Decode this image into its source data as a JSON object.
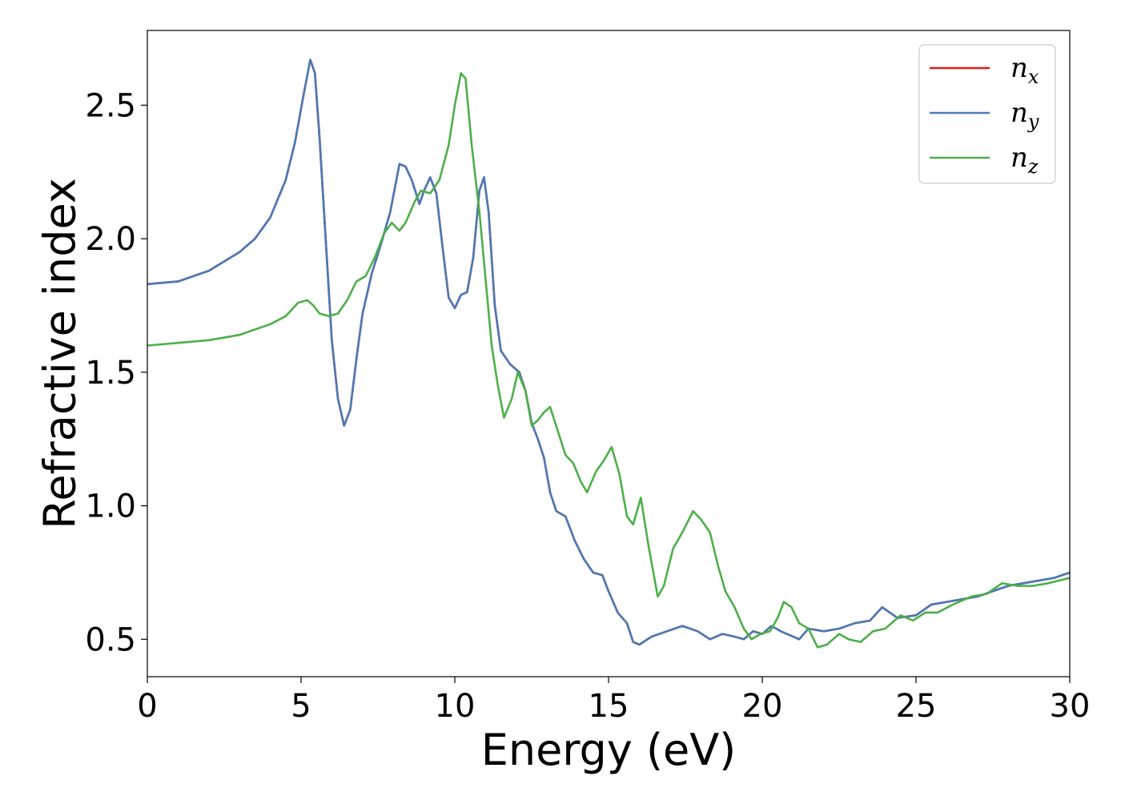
{
  "chart_data": {
    "type": "line",
    "title": "",
    "xlabel": "Energy (eV)",
    "ylabel": "Refractive index",
    "xlim": [
      0,
      30
    ],
    "ylim": [
      0.36,
      2.78
    ],
    "xticks": [
      0,
      5,
      10,
      15,
      20,
      25,
      30
    ],
    "yticks": [
      0.5,
      1.0,
      1.5,
      2.0,
      2.5
    ],
    "xtick_labels": [
      "0",
      "5",
      "10",
      "15",
      "20",
      "25",
      "30"
    ],
    "ytick_labels": [
      "0.5",
      "1.0",
      "1.5",
      "2.0",
      "2.5"
    ],
    "grid": false,
    "legend_position": "top-right",
    "series": [
      {
        "name": "n_x",
        "legend_main": "n",
        "legend_sub": "x",
        "color": "#e41a1c",
        "points": [
          [
            0,
            1.83
          ],
          [
            1,
            1.84
          ],
          [
            2,
            1.88
          ],
          [
            3,
            1.95
          ],
          [
            3.5,
            2.0
          ],
          [
            4,
            2.08
          ],
          [
            4.5,
            2.22
          ],
          [
            4.8,
            2.36
          ],
          [
            5.1,
            2.55
          ],
          [
            5.3,
            2.67
          ],
          [
            5.45,
            2.62
          ],
          [
            5.6,
            2.38
          ],
          [
            5.8,
            2.0
          ],
          [
            6.0,
            1.62
          ],
          [
            6.2,
            1.4
          ],
          [
            6.4,
            1.3
          ],
          [
            6.6,
            1.36
          ],
          [
            6.8,
            1.55
          ],
          [
            7.0,
            1.72
          ],
          [
            7.3,
            1.87
          ],
          [
            7.6,
            1.98
          ],
          [
            7.9,
            2.1
          ],
          [
            8.2,
            2.28
          ],
          [
            8.4,
            2.27
          ],
          [
            8.6,
            2.22
          ],
          [
            8.85,
            2.13
          ],
          [
            9.0,
            2.18
          ],
          [
            9.2,
            2.23
          ],
          [
            9.4,
            2.17
          ],
          [
            9.6,
            1.97
          ],
          [
            9.8,
            1.78
          ],
          [
            10.0,
            1.74
          ],
          [
            10.2,
            1.79
          ],
          [
            10.4,
            1.8
          ],
          [
            10.6,
            1.93
          ],
          [
            10.8,
            2.18
          ],
          [
            10.95,
            2.23
          ],
          [
            11.1,
            2.1
          ],
          [
            11.3,
            1.75
          ],
          [
            11.5,
            1.58
          ],
          [
            11.8,
            1.53
          ],
          [
            12.1,
            1.5
          ],
          [
            12.3,
            1.43
          ],
          [
            12.5,
            1.31
          ],
          [
            12.7,
            1.25
          ],
          [
            12.9,
            1.18
          ],
          [
            13.1,
            1.05
          ],
          [
            13.3,
            0.98
          ],
          [
            13.6,
            0.96
          ],
          [
            13.9,
            0.87
          ],
          [
            14.2,
            0.8
          ],
          [
            14.5,
            0.75
          ],
          [
            14.8,
            0.74
          ],
          [
            15.0,
            0.68
          ],
          [
            15.3,
            0.6
          ],
          [
            15.6,
            0.56
          ],
          [
            15.8,
            0.49
          ],
          [
            16.0,
            0.48
          ],
          [
            16.4,
            0.51
          ],
          [
            16.9,
            0.53
          ],
          [
            17.4,
            0.55
          ],
          [
            17.9,
            0.53
          ],
          [
            18.3,
            0.5
          ],
          [
            18.7,
            0.52
          ],
          [
            19.1,
            0.51
          ],
          [
            19.4,
            0.5
          ],
          [
            19.7,
            0.53
          ],
          [
            20.0,
            0.52
          ],
          [
            20.3,
            0.55
          ],
          [
            20.6,
            0.53
          ],
          [
            21.0,
            0.51
          ],
          [
            21.2,
            0.5
          ],
          [
            21.5,
            0.54
          ],
          [
            22.0,
            0.53
          ],
          [
            22.5,
            0.54
          ],
          [
            23.0,
            0.56
          ],
          [
            23.5,
            0.57
          ],
          [
            23.9,
            0.62
          ],
          [
            24.4,
            0.58
          ],
          [
            25.0,
            0.59
          ],
          [
            25.5,
            0.63
          ],
          [
            26.0,
            0.64
          ],
          [
            26.5,
            0.65
          ],
          [
            27.0,
            0.66
          ],
          [
            27.5,
            0.68
          ],
          [
            28.0,
            0.7
          ],
          [
            28.5,
            0.71
          ],
          [
            29.0,
            0.72
          ],
          [
            29.5,
            0.73
          ],
          [
            30.0,
            0.75
          ]
        ]
      },
      {
        "name": "n_y",
        "legend_main": "n",
        "legend_sub": "y",
        "color": "#4a7ab5",
        "points": [
          [
            0,
            1.83
          ],
          [
            1,
            1.84
          ],
          [
            2,
            1.88
          ],
          [
            3,
            1.95
          ],
          [
            3.5,
            2.0
          ],
          [
            4,
            2.08
          ],
          [
            4.5,
            2.22
          ],
          [
            4.8,
            2.36
          ],
          [
            5.1,
            2.55
          ],
          [
            5.3,
            2.67
          ],
          [
            5.45,
            2.62
          ],
          [
            5.6,
            2.38
          ],
          [
            5.8,
            2.0
          ],
          [
            6.0,
            1.62
          ],
          [
            6.2,
            1.4
          ],
          [
            6.4,
            1.3
          ],
          [
            6.6,
            1.36
          ],
          [
            6.8,
            1.55
          ],
          [
            7.0,
            1.72
          ],
          [
            7.3,
            1.87
          ],
          [
            7.6,
            1.98
          ],
          [
            7.9,
            2.1
          ],
          [
            8.2,
            2.28
          ],
          [
            8.4,
            2.27
          ],
          [
            8.6,
            2.22
          ],
          [
            8.85,
            2.13
          ],
          [
            9.0,
            2.18
          ],
          [
            9.2,
            2.23
          ],
          [
            9.4,
            2.17
          ],
          [
            9.6,
            1.97
          ],
          [
            9.8,
            1.78
          ],
          [
            10.0,
            1.74
          ],
          [
            10.2,
            1.79
          ],
          [
            10.4,
            1.8
          ],
          [
            10.6,
            1.93
          ],
          [
            10.8,
            2.18
          ],
          [
            10.95,
            2.23
          ],
          [
            11.1,
            2.1
          ],
          [
            11.3,
            1.75
          ],
          [
            11.5,
            1.58
          ],
          [
            11.8,
            1.53
          ],
          [
            12.1,
            1.5
          ],
          [
            12.3,
            1.43
          ],
          [
            12.5,
            1.31
          ],
          [
            12.7,
            1.25
          ],
          [
            12.9,
            1.18
          ],
          [
            13.1,
            1.05
          ],
          [
            13.3,
            0.98
          ],
          [
            13.6,
            0.96
          ],
          [
            13.9,
            0.87
          ],
          [
            14.2,
            0.8
          ],
          [
            14.5,
            0.75
          ],
          [
            14.8,
            0.74
          ],
          [
            15.0,
            0.68
          ],
          [
            15.3,
            0.6
          ],
          [
            15.6,
            0.56
          ],
          [
            15.8,
            0.49
          ],
          [
            16.0,
            0.48
          ],
          [
            16.4,
            0.51
          ],
          [
            16.9,
            0.53
          ],
          [
            17.4,
            0.55
          ],
          [
            17.9,
            0.53
          ],
          [
            18.3,
            0.5
          ],
          [
            18.7,
            0.52
          ],
          [
            19.1,
            0.51
          ],
          [
            19.4,
            0.5
          ],
          [
            19.7,
            0.53
          ],
          [
            20.0,
            0.52
          ],
          [
            20.3,
            0.55
          ],
          [
            20.6,
            0.53
          ],
          [
            21.0,
            0.51
          ],
          [
            21.2,
            0.5
          ],
          [
            21.5,
            0.54
          ],
          [
            22.0,
            0.53
          ],
          [
            22.5,
            0.54
          ],
          [
            23.0,
            0.56
          ],
          [
            23.5,
            0.57
          ],
          [
            23.9,
            0.62
          ],
          [
            24.4,
            0.58
          ],
          [
            25.0,
            0.59
          ],
          [
            25.5,
            0.63
          ],
          [
            26.0,
            0.64
          ],
          [
            26.5,
            0.65
          ],
          [
            27.0,
            0.66
          ],
          [
            27.5,
            0.68
          ],
          [
            28.0,
            0.7
          ],
          [
            28.5,
            0.71
          ],
          [
            29.0,
            0.72
          ],
          [
            29.5,
            0.73
          ],
          [
            30.0,
            0.75
          ]
        ]
      },
      {
        "name": "n_z",
        "legend_main": "n",
        "legend_sub": "z",
        "color": "#4daf4a",
        "points": [
          [
            0,
            1.6
          ],
          [
            1,
            1.61
          ],
          [
            2,
            1.62
          ],
          [
            3,
            1.64
          ],
          [
            4,
            1.68
          ],
          [
            4.5,
            1.71
          ],
          [
            4.9,
            1.76
          ],
          [
            5.2,
            1.77
          ],
          [
            5.4,
            1.75
          ],
          [
            5.6,
            1.72
          ],
          [
            5.9,
            1.71
          ],
          [
            6.2,
            1.72
          ],
          [
            6.5,
            1.77
          ],
          [
            6.8,
            1.84
          ],
          [
            7.1,
            1.86
          ],
          [
            7.4,
            1.93
          ],
          [
            7.7,
            2.02
          ],
          [
            7.95,
            2.06
          ],
          [
            8.2,
            2.03
          ],
          [
            8.4,
            2.06
          ],
          [
            8.7,
            2.14
          ],
          [
            8.9,
            2.18
          ],
          [
            9.2,
            2.17
          ],
          [
            9.5,
            2.22
          ],
          [
            9.8,
            2.35
          ],
          [
            10.0,
            2.5
          ],
          [
            10.2,
            2.62
          ],
          [
            10.35,
            2.6
          ],
          [
            10.55,
            2.35
          ],
          [
            10.8,
            2.1
          ],
          [
            11.0,
            1.85
          ],
          [
            11.2,
            1.6
          ],
          [
            11.4,
            1.45
          ],
          [
            11.6,
            1.33
          ],
          [
            11.85,
            1.4
          ],
          [
            12.05,
            1.5
          ],
          [
            12.3,
            1.43
          ],
          [
            12.5,
            1.3
          ],
          [
            12.7,
            1.32
          ],
          [
            12.9,
            1.35
          ],
          [
            13.1,
            1.37
          ],
          [
            13.35,
            1.28
          ],
          [
            13.6,
            1.19
          ],
          [
            13.85,
            1.16
          ],
          [
            14.1,
            1.09
          ],
          [
            14.3,
            1.05
          ],
          [
            14.6,
            1.13
          ],
          [
            14.85,
            1.17
          ],
          [
            15.1,
            1.22
          ],
          [
            15.35,
            1.12
          ],
          [
            15.6,
            0.96
          ],
          [
            15.8,
            0.93
          ],
          [
            16.05,
            1.03
          ],
          [
            16.3,
            0.85
          ],
          [
            16.6,
            0.66
          ],
          [
            16.8,
            0.7
          ],
          [
            17.1,
            0.84
          ],
          [
            17.4,
            0.9
          ],
          [
            17.75,
            0.98
          ],
          [
            18.0,
            0.95
          ],
          [
            18.3,
            0.9
          ],
          [
            18.55,
            0.78
          ],
          [
            18.8,
            0.68
          ],
          [
            19.1,
            0.62
          ],
          [
            19.4,
            0.54
          ],
          [
            19.65,
            0.5
          ],
          [
            19.95,
            0.52
          ],
          [
            20.25,
            0.53
          ],
          [
            20.5,
            0.58
          ],
          [
            20.7,
            0.64
          ],
          [
            20.95,
            0.62
          ],
          [
            21.2,
            0.56
          ],
          [
            21.5,
            0.54
          ],
          [
            21.8,
            0.47
          ],
          [
            22.1,
            0.48
          ],
          [
            22.5,
            0.52
          ],
          [
            22.8,
            0.5
          ],
          [
            23.2,
            0.49
          ],
          [
            23.6,
            0.53
          ],
          [
            24.0,
            0.54
          ],
          [
            24.5,
            0.59
          ],
          [
            24.9,
            0.57
          ],
          [
            25.3,
            0.6
          ],
          [
            25.7,
            0.6
          ],
          [
            26.2,
            0.63
          ],
          [
            26.8,
            0.66
          ],
          [
            27.3,
            0.67
          ],
          [
            27.8,
            0.71
          ],
          [
            28.3,
            0.7
          ],
          [
            28.8,
            0.7
          ],
          [
            29.3,
            0.71
          ],
          [
            30.0,
            0.73
          ]
        ]
      }
    ]
  }
}
